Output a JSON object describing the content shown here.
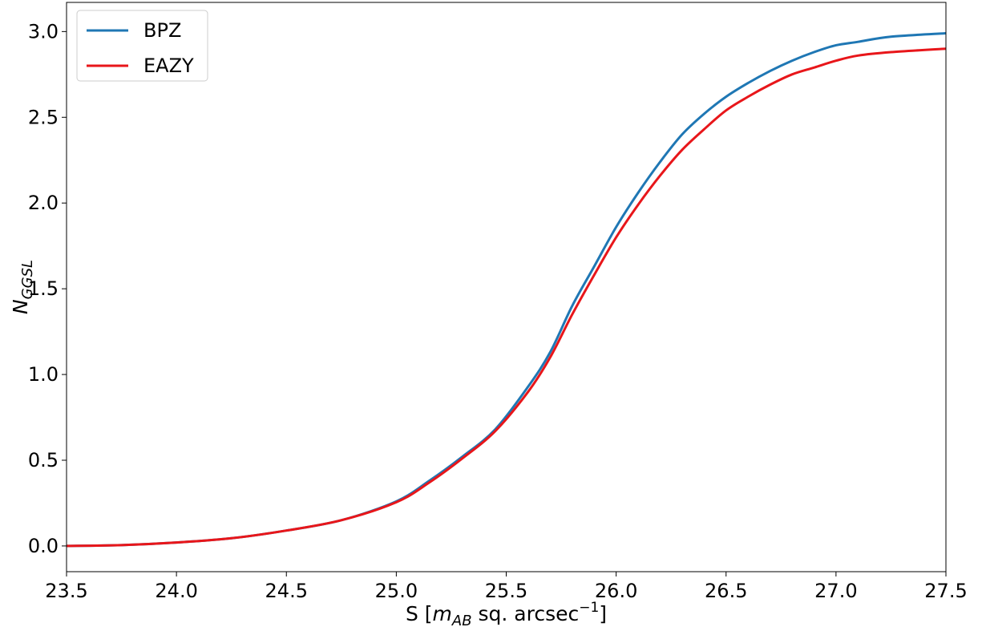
{
  "chart_data": {
    "type": "line",
    "title": "",
    "xlabel": {
      "prefix": "S [",
      "var": "m",
      "sub": "AB",
      "suffix": " sq. arcsec",
      "sup": "−1",
      "close": "]"
    },
    "ylabel": {
      "var": "N",
      "sub": "GGSL"
    },
    "xlim": [
      23.5,
      27.5
    ],
    "ylim": [
      -0.15,
      3.17
    ],
    "xticks": [
      23.5,
      24.0,
      24.5,
      25.0,
      25.5,
      26.0,
      26.5,
      27.0,
      27.5
    ],
    "xtick_labels": [
      "23.5",
      "24.0",
      "24.5",
      "25.0",
      "25.5",
      "26.0",
      "26.5",
      "27.0",
      "27.5"
    ],
    "yticks": [
      0.0,
      0.5,
      1.0,
      1.5,
      2.0,
      2.5,
      3.0
    ],
    "ytick_labels": [
      "0.0",
      "0.5",
      "1.0",
      "1.5",
      "2.0",
      "2.5",
      "3.0"
    ],
    "grid": false,
    "legend_position": "top-left",
    "series": [
      {
        "name": "BPZ",
        "color": "#1f77b4",
        "x": [
          23.5,
          23.75,
          24.0,
          24.25,
          24.5,
          24.75,
          25.0,
          25.15,
          25.3,
          25.45,
          25.6,
          25.7,
          25.8,
          25.9,
          26.0,
          26.1,
          26.2,
          26.3,
          26.4,
          26.5,
          26.6,
          26.7,
          26.8,
          26.9,
          27.0,
          27.1,
          27.25,
          27.5
        ],
        "values": [
          0.0,
          0.005,
          0.02,
          0.045,
          0.09,
          0.15,
          0.26,
          0.38,
          0.52,
          0.68,
          0.93,
          1.13,
          1.4,
          1.63,
          1.86,
          2.06,
          2.24,
          2.4,
          2.52,
          2.62,
          2.7,
          2.77,
          2.83,
          2.88,
          2.92,
          2.94,
          2.97,
          2.99
        ]
      },
      {
        "name": "EAZY",
        "color": "#e8161a",
        "x": [
          23.5,
          23.75,
          24.0,
          24.25,
          24.5,
          24.75,
          25.0,
          25.15,
          25.3,
          25.45,
          25.6,
          25.7,
          25.8,
          25.9,
          26.0,
          26.1,
          26.2,
          26.3,
          26.4,
          26.5,
          26.6,
          26.7,
          26.8,
          26.9,
          27.0,
          27.1,
          27.25,
          27.5
        ],
        "values": [
          0.0,
          0.005,
          0.02,
          0.045,
          0.09,
          0.15,
          0.255,
          0.37,
          0.51,
          0.67,
          0.9,
          1.1,
          1.35,
          1.58,
          1.8,
          1.99,
          2.16,
          2.31,
          2.43,
          2.54,
          2.62,
          2.69,
          2.75,
          2.79,
          2.83,
          2.86,
          2.88,
          2.9
        ]
      }
    ]
  }
}
